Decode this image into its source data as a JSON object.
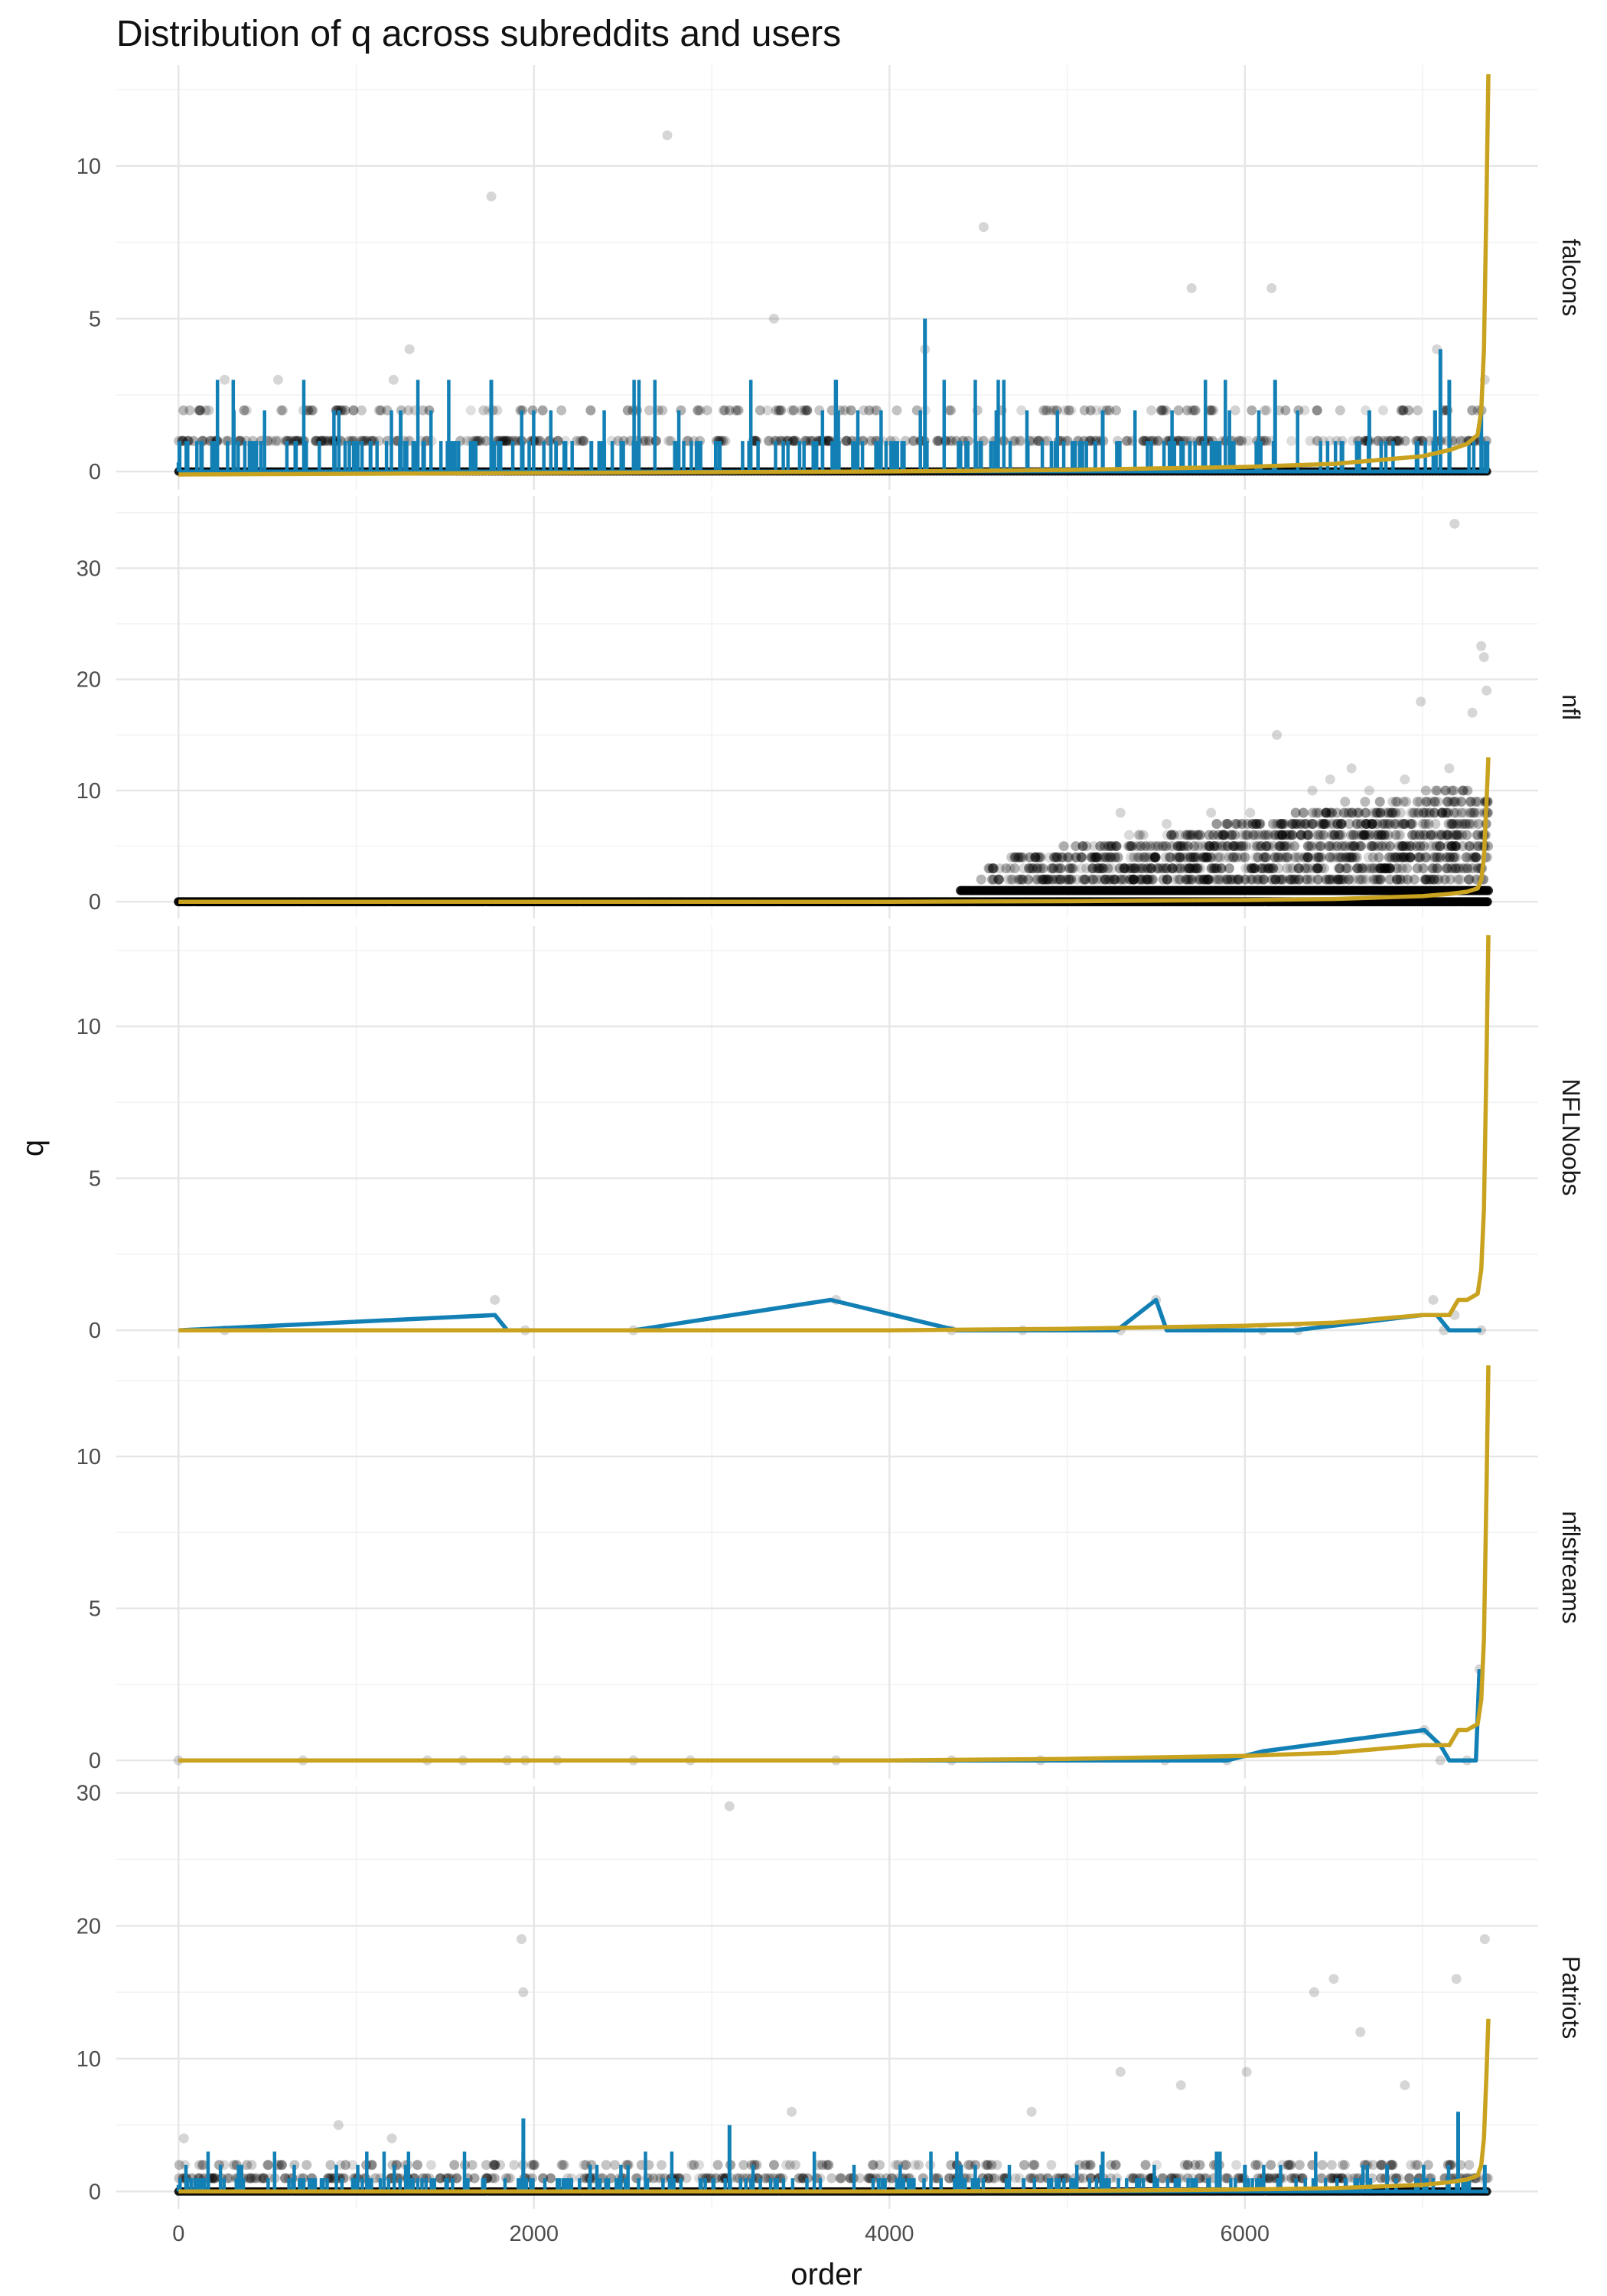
{
  "chart_data": {
    "type": "scatter",
    "title": "Distribution of q across subreddits and users",
    "xlabel": "order",
    "ylabel": "q",
    "xlim": [
      -350,
      7650
    ],
    "x_ticks": [
      0,
      2000,
      4000,
      6000
    ],
    "x_tick_labels": [
      "0",
      "2000",
      "4000",
      "6000"
    ],
    "grid": true,
    "legend": "none",
    "colors": {
      "points": "#000000",
      "user_line": "#1380b5",
      "subreddit_line": "#c9a21f"
    },
    "panels": [
      {
        "name": "falcons",
        "ylim": [
          -0.6,
          13.3
        ],
        "y_ticks": [
          0,
          5,
          10
        ],
        "y_tick_labels": [
          "0",
          "5",
          "10"
        ],
        "series": [
          {
            "kind": "points",
            "x": [
              260,
              560,
              900,
              1210,
              1300,
              1760,
              2750,
              3350,
              4200,
              4530,
              5700,
              6150,
              7080,
              7350
            ],
            "y": [
              3,
              3,
              2,
              3,
              4,
              9,
              11,
              5,
              4,
              8,
              6,
              6,
              4,
              3
            ]
          },
          {
            "kind": "line",
            "x": [
              0,
              1250,
              1760,
              3700,
              4200,
              5200,
              6170,
              6700,
              7100,
              7150,
              7330
            ],
            "y": [
              0.3,
              2,
              3,
              3,
              5,
              2,
              3,
              2,
              4,
              3,
              2
            ]
          },
          {
            "kind": "line",
            "x": [
              0,
              2000,
              4000,
              5000,
              6000,
              6500,
              7000,
              7150,
              7250,
              7310,
              7330,
              7345,
              7360,
              7370
            ],
            "y": [
              -0.1,
              -0.05,
              0,
              0.05,
              0.15,
              0.25,
              0.5,
              0.7,
              0.9,
              1.2,
              2,
              4,
              9,
              13
            ]
          }
        ]
      },
      {
        "name": "nfl",
        "ylim": [
          -1.5,
          36.5
        ],
        "y_ticks": [
          0,
          10,
          20,
          30
        ],
        "y_tick_labels": [
          "0",
          "10",
          "20",
          "30"
        ],
        "series": [
          {
            "kind": "points",
            "x": [
              5300,
              5560,
              5810,
              6030,
              6180,
              6380,
              6480,
              6600,
              6700,
              6900,
              6990,
              7150,
              7180,
              7280,
              7330,
              7345,
              7360
            ],
            "y": [
              8,
              7,
              8,
              8,
              15,
              10,
              11,
              12,
              10,
              11,
              18,
              12,
              34,
              17,
              23,
              22,
              19
            ]
          },
          {
            "kind": "line",
            "x": [
              0,
              2000,
              4000,
              5000,
              6000,
              6500,
              7000,
              7150,
              7250,
              7310,
              7330,
              7345,
              7360,
              7370
            ],
            "y": [
              0,
              0,
              0,
              0.05,
              0.15,
              0.25,
              0.5,
              0.7,
              0.9,
              1.2,
              2,
              4,
              9,
              13
            ]
          }
        ]
      },
      {
        "name": "NFLNoobs",
        "ylim": [
          -0.6,
          13.3
        ],
        "y_ticks": [
          0,
          5,
          10
        ],
        "y_tick_labels": [
          "0",
          "5",
          "10"
        ],
        "series": [
          {
            "kind": "points",
            "x": [
              260,
              1780,
              1950,
              2560,
              3700,
              4350,
              4750,
              5300,
              5500,
              6100,
              6300,
              7060,
              7120,
              7180,
              7330
            ],
            "y": [
              0,
              1,
              0,
              0,
              1,
              0,
              0,
              0,
              1,
              0,
              0,
              1,
              0,
              0.5,
              0
            ]
          },
          {
            "kind": "line",
            "x": [
              0,
              1780,
              1850,
              2560,
              3670,
              4380,
              5280,
              5500,
              5560,
              6280,
              7000,
              7080,
              7150,
              7330
            ],
            "y": [
              0,
              0.5,
              0,
              0,
              1,
              0,
              0,
              1,
              0,
              0,
              0.5,
              0.5,
              0,
              0
            ]
          },
          {
            "kind": "line",
            "x": [
              0,
              2000,
              4000,
              5000,
              6000,
              6500,
              7000,
              7150,
              7200,
              7250,
              7310,
              7330,
              7345,
              7360,
              7370
            ],
            "y": [
              0,
              0,
              0,
              0.05,
              0.15,
              0.25,
              0.5,
              0.5,
              1,
              1,
              1.2,
              2,
              4,
              9,
              13
            ]
          }
        ]
      },
      {
        "name": "nflstreams",
        "ylim": [
          -0.6,
          13.3
        ],
        "y_ticks": [
          0,
          5,
          10
        ],
        "y_tick_labels": [
          "0",
          "5",
          "10"
        ],
        "series": [
          {
            "kind": "points",
            "x": [
              0,
              700,
              1400,
              1600,
              1850,
              1950,
              2130,
              2560,
              2880,
              3700,
              4350,
              4850,
              5550,
              5900,
              7010,
              7100,
              7250,
              7320
            ],
            "y": [
              0,
              0,
              0,
              0,
              0,
              0,
              0,
              0,
              0,
              0,
              0,
              0,
              0,
              0,
              1,
              0,
              0,
              3
            ]
          },
          {
            "kind": "line",
            "x": [
              0,
              4000,
              4500,
              5900,
              6100,
              7010,
              7100,
              7150,
              7300,
              7320
            ],
            "y": [
              0,
              0,
              0,
              0,
              0.3,
              1,
              0.5,
              0,
              0,
              3
            ]
          },
          {
            "kind": "line",
            "x": [
              0,
              2000,
              4000,
              5000,
              6000,
              6500,
              7000,
              7150,
              7200,
              7250,
              7310,
              7330,
              7345,
              7360,
              7370
            ],
            "y": [
              0,
              0,
              0,
              0.05,
              0.15,
              0.25,
              0.5,
              0.5,
              1,
              1,
              1.2,
              2,
              4,
              9,
              13
            ]
          }
        ]
      },
      {
        "name": "Patriots",
        "ylim": [
          -1.3,
          30.5
        ],
        "y_ticks": [
          0,
          10,
          20,
          30
        ],
        "y_tick_labels": [
          "0",
          "10",
          "20",
          "30"
        ],
        "series": [
          {
            "kind": "points",
            "x": [
              30,
              900,
              1200,
              1930,
              1940,
              3100,
              3450,
              4800,
              5300,
              5640,
              6010,
              6390,
              6500,
              6650,
              6900,
              7190,
              7350
            ],
            "y": [
              4,
              5,
              4,
              19,
              15,
              29,
              6,
              6,
              9,
              8,
              9,
              15,
              16,
              12,
              8,
              16,
              19
            ]
          },
          {
            "kind": "line",
            "x": [
              0,
              1000,
              1940,
              3100,
              4400,
              5200,
              6000,
              6800,
              7200,
              7350
            ],
            "y": [
              0.5,
              1,
              5.5,
              5,
              2,
              3,
              2,
              2,
              6,
              2
            ]
          },
          {
            "kind": "line",
            "x": [
              0,
              2000,
              4000,
              5000,
              6000,
              6500,
              7000,
              7150,
              7250,
              7310,
              7330,
              7345,
              7360,
              7370
            ],
            "y": [
              0,
              0,
              0,
              0.05,
              0.15,
              0.25,
              0.5,
              0.7,
              0.9,
              1.2,
              2,
              4,
              9,
              13
            ]
          }
        ]
      }
    ]
  }
}
